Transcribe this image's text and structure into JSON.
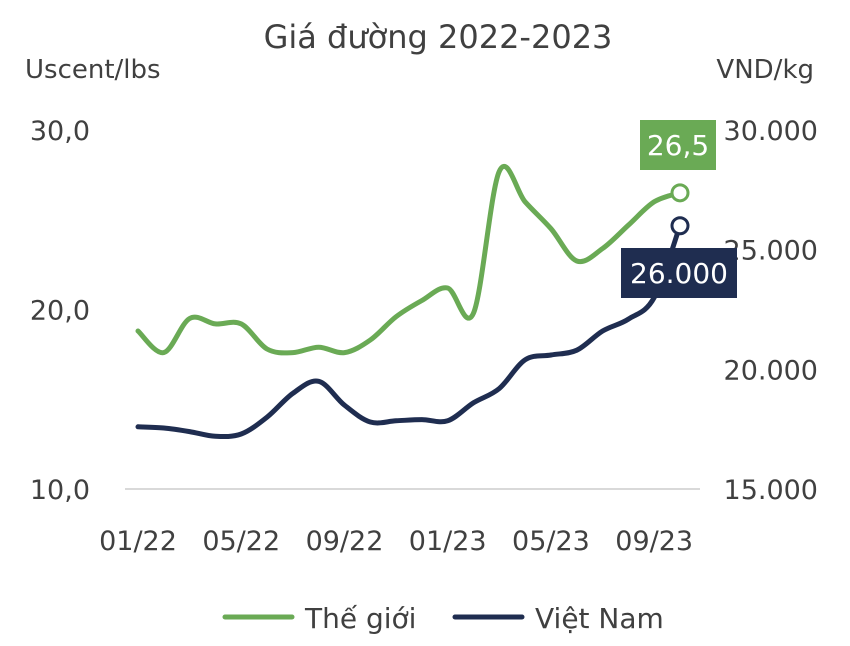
{
  "chart_data": {
    "type": "line",
    "title": "Giá đường 2022-2023",
    "left_axis": {
      "label": "Uscent/lbs",
      "ylim": [
        10,
        30
      ],
      "ticks": [
        "10,0",
        "20,0",
        "30,0"
      ],
      "tick_values": [
        10,
        20,
        30
      ]
    },
    "right_axis": {
      "label": "VND/kg",
      "ylim": [
        15000,
        30000
      ],
      "ticks": [
        "15.000",
        "20.000",
        "25.000",
        "30.000"
      ],
      "tick_values": [
        15000,
        20000,
        25000,
        30000
      ]
    },
    "x_axis": {
      "start": "2022-01",
      "end": "2023-10",
      "tick_labels": [
        "01/22",
        "05/22",
        "09/22",
        "01/23",
        "05/23",
        "09/23"
      ],
      "tick_months": [
        "2022-01",
        "2022-05",
        "2022-09",
        "2023-01",
        "2023-05",
        "2023-09"
      ]
    },
    "grid": false,
    "legend": {
      "position": "bottom",
      "entries": [
        "Thế giới",
        "Việt Nam"
      ]
    },
    "series": [
      {
        "name": "Thế giới",
        "axis": "left",
        "color": "#6aaa55",
        "x": [
          "2022-01",
          "2022-02",
          "2022-03",
          "2022-04",
          "2022-05",
          "2022-06",
          "2022-07",
          "2022-08",
          "2022-09",
          "2022-10",
          "2022-11",
          "2022-12",
          "2023-01",
          "2023-02",
          "2023-03",
          "2023-04",
          "2023-05",
          "2023-06",
          "2023-07",
          "2023-08",
          "2023-09",
          "2023-10"
        ],
        "values": [
          18.8,
          17.6,
          19.5,
          19.2,
          19.2,
          17.8,
          17.6,
          17.9,
          17.6,
          18.3,
          19.6,
          20.5,
          21.2,
          19.8,
          27.7,
          26.0,
          24.5,
          22.7,
          23.4,
          24.7,
          26.0,
          26.5
        ],
        "end_label": "26,5"
      },
      {
        "name": "Việt Nam",
        "axis": "right",
        "color": "#1f2d50",
        "x": [
          "2022-01",
          "2022-02",
          "2022-03",
          "2022-04",
          "2022-05",
          "2022-06",
          "2022-07",
          "2022-08",
          "2022-09",
          "2022-10",
          "2022-11",
          "2022-12",
          "2023-01",
          "2023-02",
          "2023-03",
          "2023-04",
          "2023-05",
          "2023-06",
          "2023-07",
          "2023-08",
          "2023-09",
          "2023-10"
        ],
        "values": [
          17.6,
          17.55,
          17.4,
          17.2,
          17.3,
          18.0,
          19.0,
          19.5,
          18.5,
          17.8,
          17.85,
          17.9,
          17.85,
          18.6,
          19.2,
          20.4,
          20.6,
          20.8,
          21.6,
          22.1,
          23.0,
          26.0
        ],
        "values_unit_note": "",
        "end_label": "26.000"
      }
    ]
  }
}
